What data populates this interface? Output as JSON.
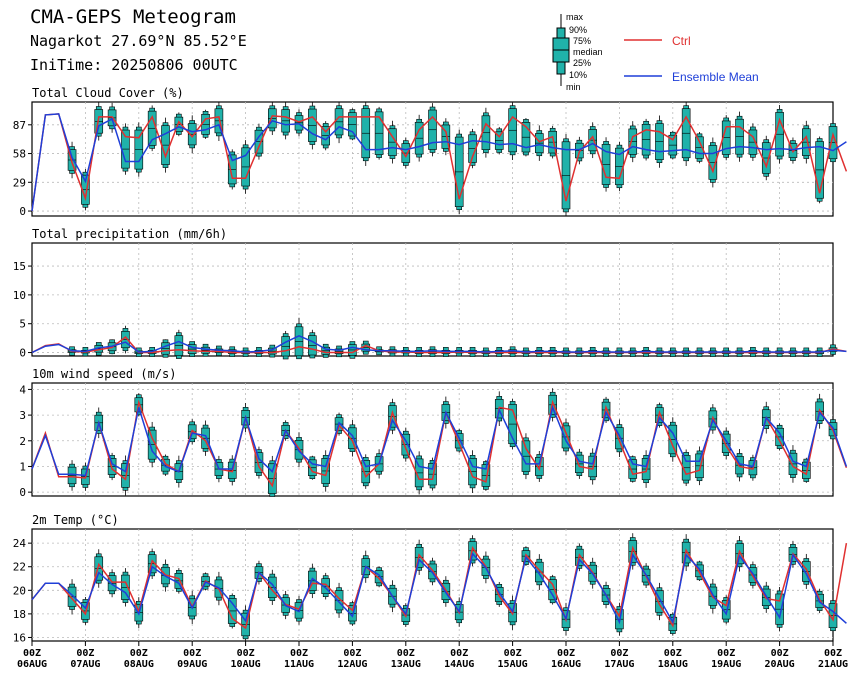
{
  "header": {
    "title": "CMA-GEPS Meteogram",
    "location": "Nagarkot 27.69°N 85.52°E",
    "init_time": "IniTime: 20250806 00UTC"
  },
  "legend": {
    "box_labels": [
      "max",
      "90%",
      "75%",
      "median",
      "25%",
      "10%",
      "min"
    ],
    "ctrl": "Ctrl",
    "ensemble_mean": "Ensemble Mean",
    "ctrl_color": "#e03030",
    "mean_color": "#1f3fd8",
    "box_color": "#20b2aa"
  },
  "chart_data": [
    {
      "type": "box",
      "title": "Total Cloud Cover (%)",
      "ylim": [
        -5,
        110
      ],
      "yticks": [
        0,
        29,
        58,
        87
      ],
      "ctrl": [
        0,
        97,
        98,
        49,
        13,
        95,
        95,
        75,
        74,
        95,
        55,
        90,
        75,
        93,
        95,
        33,
        33,
        65,
        96,
        95,
        90,
        95,
        80,
        95,
        95,
        95,
        95,
        75,
        55,
        82,
        95,
        80,
        12,
        55,
        88,
        75,
        95,
        85,
        70,
        75,
        10,
        60,
        75,
        34,
        33,
        75,
        82,
        80,
        72,
        95,
        70,
        40,
        85,
        85,
        75,
        45,
        92,
        60,
        75,
        18,
        77,
        40
      ],
      "mean": [
        0,
        97,
        98,
        54,
        30,
        86,
        93,
        50,
        50,
        72,
        78,
        85,
        80,
        82,
        87,
        51,
        56,
        75,
        91,
        87,
        88,
        78,
        72,
        85,
        80,
        62,
        62,
        64,
        62,
        65,
        69,
        70,
        67,
        71,
        70,
        67,
        68,
        64,
        67,
        64,
        62,
        62,
        68,
        60,
        57,
        65,
        62,
        60,
        61,
        62,
        58,
        58,
        63,
        65,
        64,
        62,
        63,
        62,
        64,
        65,
        61,
        70
      ]
    },
    {
      "type": "box",
      "title": "Total precipitation (mm/6h)",
      "ylim": [
        -0.6,
        19
      ],
      "yticks": [
        0,
        5,
        10,
        15
      ],
      "ctrl": [
        0,
        1.2,
        1.5,
        0.2,
        0.1,
        0.5,
        0.9,
        2.7,
        0,
        0,
        0.3,
        0.5,
        0.3,
        0.2,
        0.2,
        0,
        0,
        0,
        0,
        0.3,
        1.0,
        0.6,
        0,
        0,
        0,
        1.2,
        0.3,
        0.1,
        0.1,
        0,
        0,
        0,
        0.1,
        0,
        0,
        0,
        0,
        0,
        0,
        0,
        0,
        0,
        0,
        0,
        0,
        0,
        0,
        0,
        0,
        0,
        0,
        0,
        0,
        0,
        0,
        0,
        0,
        0,
        0,
        0,
        0.6,
        0.2
      ],
      "mean": [
        0,
        1.1,
        1.4,
        0.3,
        0.2,
        0.8,
        1.1,
        1.8,
        0.1,
        0.2,
        1.1,
        1.9,
        0.9,
        0.6,
        0.4,
        0.3,
        0.1,
        0.2,
        0.5,
        1.8,
        2.9,
        1.9,
        0.6,
        0.4,
        0.9,
        0.5,
        0.3,
        0.3,
        0.2,
        0.2,
        0.3,
        0.2,
        0.2,
        0.2,
        0.1,
        0.2,
        0.3,
        0.1,
        0.2,
        0.2,
        0.1,
        0.1,
        0.2,
        0.1,
        0.1,
        0.1,
        0.2,
        0.1,
        0.1,
        0.1,
        0.1,
        0.1,
        0.1,
        0.1,
        0.2,
        0.1,
        0.1,
        0.1,
        0.1,
        0.1,
        0.4,
        0.2
      ]
    },
    {
      "type": "box",
      "title": "10m wind speed (m/s)",
      "ylim": [
        -0.15,
        4.25
      ],
      "yticks": [
        0,
        1,
        2,
        3,
        4
      ],
      "ctrl": [
        0.9,
        2.3,
        0.6,
        0.6,
        0.55,
        2.7,
        0.9,
        0.5,
        3.5,
        2.1,
        1.1,
        0.8,
        2.4,
        2.0,
        0.9,
        0.8,
        2.9,
        1.0,
        0.25,
        2.4,
        1.7,
        0.8,
        0.65,
        2.6,
        2.0,
        0.6,
        1.1,
        3.1,
        1.7,
        0.5,
        0.5,
        3.1,
        1.9,
        0.6,
        0.4,
        3.3,
        3.2,
        1.7,
        0.9,
        3.5,
        2.3,
        1.0,
        0.9,
        3.3,
        2.0,
        0.7,
        0.8,
        3.1,
        1.8,
        0.7,
        0.85,
        2.9,
        1.8,
        1.0,
        0.9,
        2.9,
        2.0,
        1.0,
        0.7,
        3.2,
        2.4,
        0.95
      ],
      "mean": [
        0.9,
        2.2,
        0.7,
        0.7,
        0.65,
        2.7,
        1.1,
        0.8,
        3.3,
        1.6,
        1.0,
        0.8,
        2.3,
        2.2,
        0.9,
        0.9,
        2.9,
        1.3,
        0.8,
        2.4,
        1.6,
        1.1,
        1.0,
        2.7,
        2.2,
        1.0,
        1.1,
        2.8,
        2.0,
        1.0,
        0.9,
        3.1,
        2.1,
        1.0,
        0.9,
        3.2,
        2.1,
        1.1,
        1.1,
        3.3,
        2.0,
        1.2,
        1.1,
        3.1,
        2.2,
        1.1,
        1.0,
        2.9,
        2.3,
        1.2,
        1.2,
        2.8,
        2.0,
        1.1,
        1.0,
        2.9,
        2.3,
        1.2,
        1.0,
        3.1,
        2.5,
        1.0
      ]
    },
    {
      "type": "box",
      "title": "2m Temp (°C)",
      "ylim": [
        15.7,
        25.2
      ],
      "yticks": [
        16,
        18,
        20,
        22,
        24
      ],
      "ctrl": [
        19.2,
        20.6,
        20.6,
        19.3,
        18.0,
        22.2,
        20.7,
        20.7,
        18.2,
        22.5,
        21.3,
        21.0,
        18.6,
        20.8,
        20.1,
        17.6,
        16.8,
        21.5,
        20.0,
        18.8,
        18.4,
        20.6,
        20.5,
        19.3,
        18.3,
        22.0,
        21.0,
        19.5,
        17.8,
        23.0,
        21.7,
        20.0,
        18.1,
        23.6,
        22.0,
        19.5,
        18.0,
        23.0,
        21.7,
        20.5,
        17.5,
        23.0,
        21.5,
        19.6,
        17.8,
        23.6,
        21.2,
        18.8,
        17.0,
        23.4,
        21.5,
        19.4,
        18.7,
        23.3,
        21.2,
        19.3,
        19.1,
        23.1,
        21.8,
        19.2,
        17.5,
        24.0
      ],
      "mean": [
        19.2,
        20.6,
        20.6,
        19.6,
        18.5,
        21.5,
        20.5,
        19.8,
        18.0,
        22.0,
        21.2,
        20.6,
        18.5,
        20.7,
        20.2,
        18.9,
        17.4,
        21.5,
        20.5,
        18.7,
        18.2,
        21.0,
        20.2,
        19.0,
        17.8,
        22.0,
        21.3,
        19.5,
        18.0,
        22.6,
        21.5,
        19.8,
        18.2,
        23.1,
        21.9,
        19.8,
        18.2,
        22.8,
        21.4,
        19.6,
        17.6,
        22.6,
        21.4,
        19.6,
        17.3,
        23.0,
        21.3,
        19.3,
        17.3,
        23.0,
        21.8,
        19.6,
        18.0,
        22.9,
        21.4,
        19.5,
        17.7,
        23.0,
        21.4,
        19.0,
        18.2,
        17.2
      ]
    }
  ],
  "x_axis": {
    "labels": [
      [
        "00Z",
        "06AUG"
      ],
      [
        "00Z",
        "07AUG"
      ],
      [
        "00Z",
        "08AUG"
      ],
      [
        "00Z",
        "09AUG"
      ],
      [
        "00Z",
        "10AUG"
      ],
      [
        "00Z",
        "11AUG"
      ],
      [
        "00Z",
        "12AUG"
      ],
      [
        "00Z",
        "13AUG"
      ],
      [
        "00Z",
        "14AUG"
      ],
      [
        "00Z",
        "15AUG"
      ],
      [
        "00Z",
        "16AUG"
      ],
      [
        "00Z",
        "17AUG"
      ],
      [
        "00Z",
        "18AUG"
      ],
      [
        "00Z",
        "19AUG"
      ],
      [
        "00Z",
        "20AUG"
      ],
      [
        "00Z",
        "21AUG"
      ]
    ],
    "step_hours": 6
  }
}
